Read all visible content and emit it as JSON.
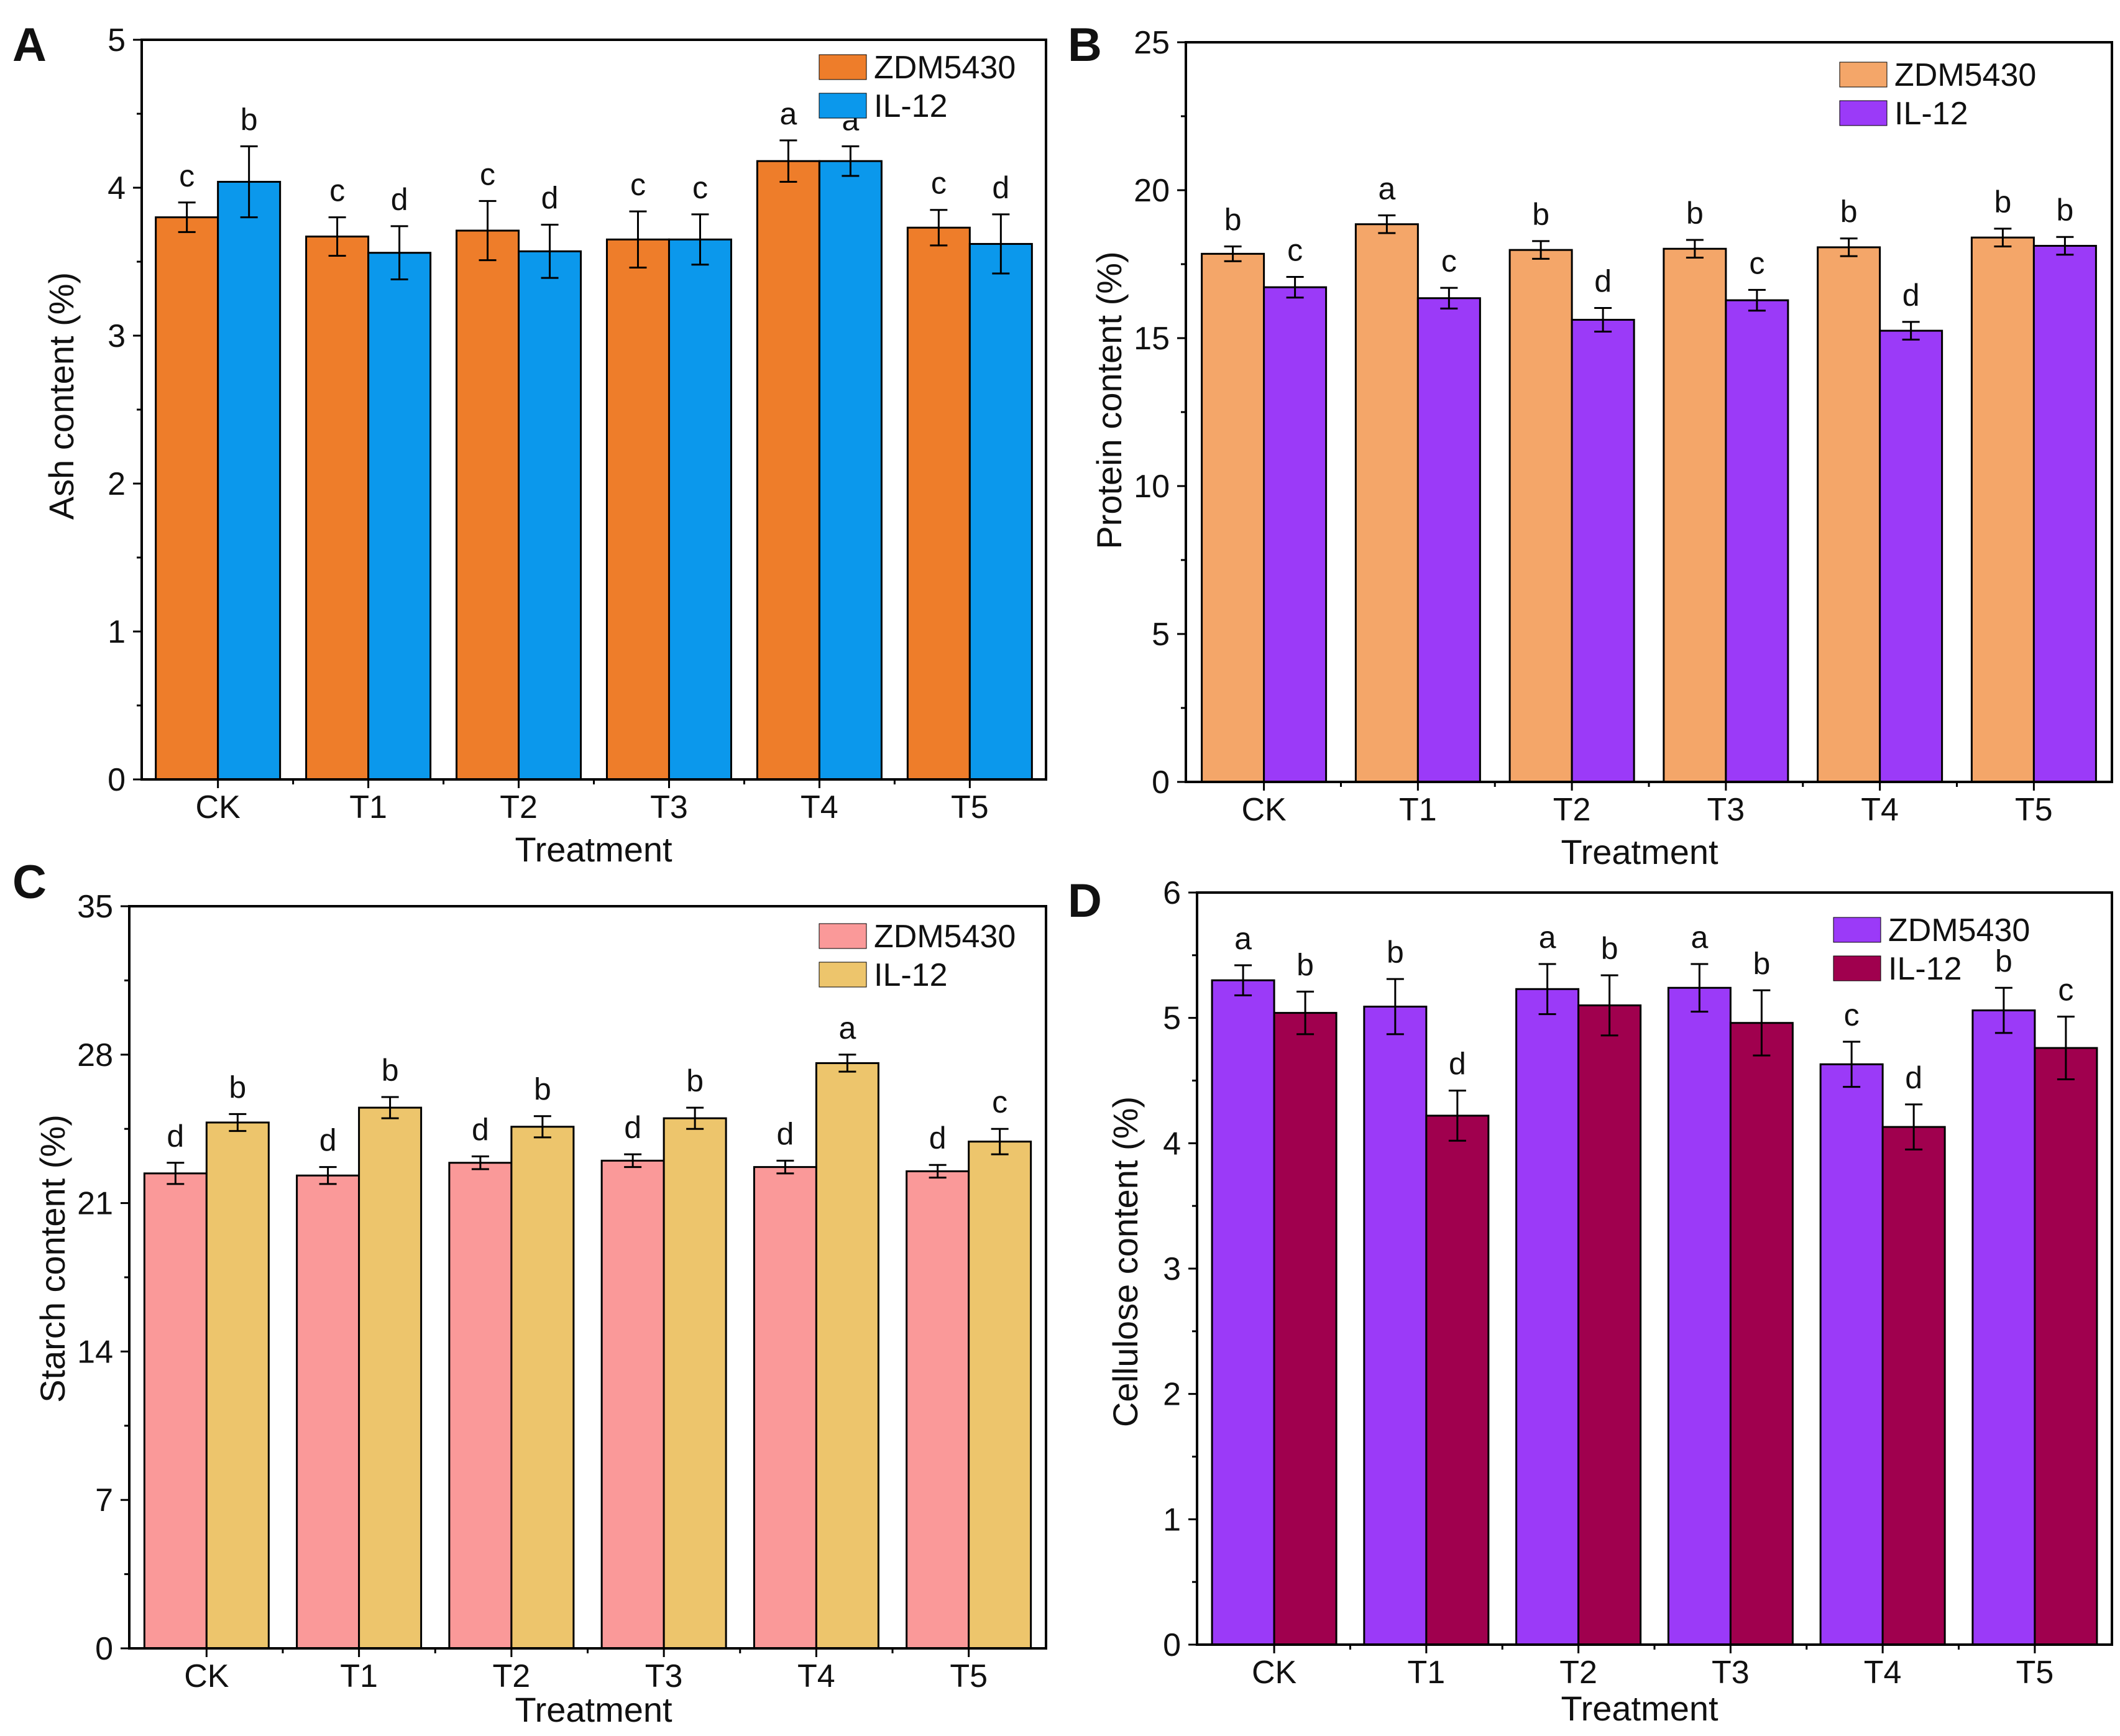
{
  "chart_data": [
    {
      "panel": "A",
      "type": "bar",
      "title": "",
      "xlabel": "Treatment",
      "ylabel": "Ash content (%)",
      "ylim": [
        0,
        5
      ],
      "yticks": [
        0,
        1,
        2,
        3,
        4,
        5
      ],
      "legend_position": "top-right",
      "categories": [
        "CK",
        "T1",
        "T2",
        "T3",
        "T4",
        "T5"
      ],
      "series": [
        {
          "name": "ZDM5430",
          "color": "#EE7D2A",
          "values": [
            3.8,
            3.67,
            3.71,
            3.65,
            4.18,
            3.73
          ],
          "errors": [
            0.1,
            0.13,
            0.2,
            0.19,
            0.14,
            0.12
          ],
          "letters": [
            "c",
            "c",
            "c",
            "c",
            "a",
            "c"
          ]
        },
        {
          "name": "IL-12",
          "color": "#0B98EC",
          "values": [
            4.04,
            3.56,
            3.57,
            3.65,
            4.18,
            3.62
          ],
          "errors": [
            0.24,
            0.18,
            0.18,
            0.17,
            0.1,
            0.2
          ],
          "letters": [
            "b",
            "d",
            "d",
            "c",
            "a",
            "d"
          ]
        }
      ]
    },
    {
      "panel": "B",
      "type": "bar",
      "title": "",
      "xlabel": "Treatment",
      "ylabel": "Protein content (%)",
      "ylim": [
        0,
        25
      ],
      "yticks": [
        0,
        5,
        10,
        15,
        20,
        25
      ],
      "legend_position": "top-right",
      "categories": [
        "CK",
        "T1",
        "T2",
        "T3",
        "T4",
        "T5"
      ],
      "series": [
        {
          "name": "ZDM5430",
          "color": "#F4A669",
          "values": [
            17.85,
            18.85,
            17.98,
            18.02,
            18.07,
            18.4
          ],
          "errors": [
            0.25,
            0.3,
            0.3,
            0.3,
            0.3,
            0.3
          ],
          "letters": [
            "b",
            "a",
            "b",
            "b",
            "b",
            "b"
          ]
        },
        {
          "name": "IL-12",
          "color": "#9B3AF8",
          "values": [
            16.72,
            16.35,
            15.62,
            16.28,
            15.25,
            18.12
          ],
          "errors": [
            0.35,
            0.35,
            0.4,
            0.35,
            0.3,
            0.3
          ],
          "letters": [
            "c",
            "c",
            "d",
            "c",
            "d",
            "b"
          ]
        }
      ]
    },
    {
      "panel": "C",
      "type": "bar",
      "title": "",
      "xlabel": "Treatment",
      "ylabel": "Starch content (%)",
      "ylim": [
        0,
        35
      ],
      "yticks": [
        0,
        7,
        14,
        21,
        28,
        35
      ],
      "legend_position": "top-right",
      "categories": [
        "CK",
        "T1",
        "T2",
        "T3",
        "T4",
        "T5"
      ],
      "series": [
        {
          "name": "ZDM5430",
          "color": "#FA9999",
          "values": [
            22.4,
            22.3,
            22.9,
            23.0,
            22.7,
            22.5
          ],
          "errors": [
            0.5,
            0.4,
            0.3,
            0.3,
            0.3,
            0.3
          ],
          "letters": [
            "d",
            "d",
            "d",
            "d",
            "d",
            "d"
          ]
        },
        {
          "name": "IL-12",
          "color": "#EDC56C",
          "values": [
            24.8,
            25.5,
            24.6,
            25.0,
            27.6,
            23.9
          ],
          "errors": [
            0.4,
            0.5,
            0.5,
            0.5,
            0.4,
            0.6
          ],
          "letters": [
            "b",
            "b",
            "b",
            "b",
            "a",
            "c"
          ]
        }
      ]
    },
    {
      "panel": "D",
      "type": "bar",
      "title": "",
      "xlabel": "Treatment",
      "ylabel": "Cellulose content (%)",
      "ylim": [
        0,
        6
      ],
      "yticks": [
        0,
        1,
        2,
        3,
        4,
        5,
        6
      ],
      "legend_position": "top-right",
      "categories": [
        "CK",
        "T1",
        "T2",
        "T3",
        "T4",
        "T5"
      ],
      "series": [
        {
          "name": "ZDM5430",
          "color": "#9B3AF8",
          "values": [
            5.3,
            5.09,
            5.23,
            5.24,
            4.63,
            5.06
          ],
          "errors": [
            0.12,
            0.22,
            0.2,
            0.19,
            0.18,
            0.18
          ],
          "letters": [
            "a",
            "b",
            "a",
            "a",
            "c",
            "b"
          ]
        },
        {
          "name": "IL-12",
          "color": "#A0004E",
          "values": [
            5.04,
            4.22,
            5.1,
            4.96,
            4.13,
            4.76
          ],
          "errors": [
            0.17,
            0.2,
            0.24,
            0.26,
            0.18,
            0.25
          ],
          "letters": [
            "b",
            "d",
            "b",
            "b",
            "d",
            "c"
          ]
        }
      ]
    }
  ]
}
